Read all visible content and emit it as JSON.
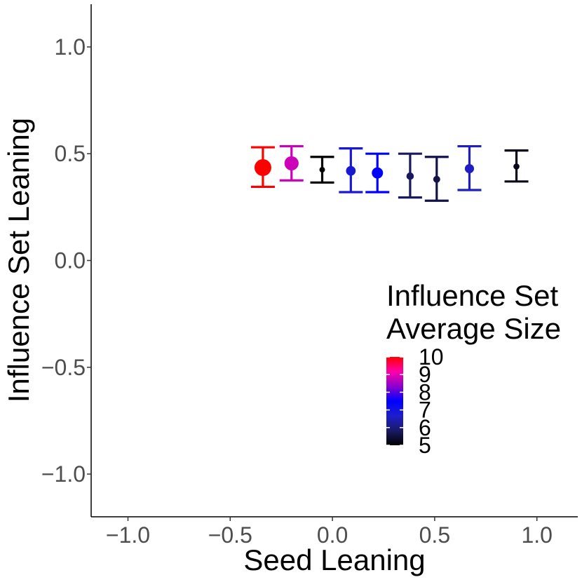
{
  "chart_data": {
    "type": "scatter",
    "title": "",
    "xlabel": "Seed Leaning",
    "ylabel": "Influence Set Leaning",
    "xlim": [
      -1.18,
      1.2
    ],
    "ylim": [
      -1.2,
      1.2
    ],
    "x_ticks": [
      -1.0,
      -0.5,
      0.0,
      0.5,
      1.0
    ],
    "x_tick_labels": [
      "−1.0",
      "−0.5",
      "0.0",
      "0.5",
      "1.0"
    ],
    "y_ticks": [
      -1.0,
      -0.5,
      0.0,
      0.5,
      1.0
    ],
    "y_tick_labels": [
      "−1.0",
      "−0.5",
      "0.0",
      "0.5",
      "1.0"
    ],
    "grid": false,
    "points": [
      {
        "x": -0.34,
        "y": 0.435,
        "ymin": 0.345,
        "ymax": 0.53,
        "size": 10.0
      },
      {
        "x": -0.2,
        "y": 0.455,
        "ymin": 0.375,
        "ymax": 0.535,
        "size": 8.8
      },
      {
        "x": -0.05,
        "y": 0.425,
        "ymin": 0.365,
        "ymax": 0.485,
        "size": 5.0
      },
      {
        "x": 0.09,
        "y": 0.42,
        "ymin": 0.32,
        "ymax": 0.525,
        "size": 6.8
      },
      {
        "x": 0.22,
        "y": 0.41,
        "ymin": 0.32,
        "ymax": 0.5,
        "size": 7.5
      },
      {
        "x": 0.38,
        "y": 0.395,
        "ymin": 0.295,
        "ymax": 0.5,
        "size": 5.8
      },
      {
        "x": 0.51,
        "y": 0.38,
        "ymin": 0.28,
        "ymax": 0.485,
        "size": 5.6
      },
      {
        "x": 0.67,
        "y": 0.43,
        "ymin": 0.33,
        "ymax": 0.535,
        "size": 6.6
      },
      {
        "x": 0.9,
        "y": 0.44,
        "ymin": 0.37,
        "ymax": 0.515,
        "size": 5.2
      }
    ],
    "legend": {
      "title_lines": [
        "Influence Set",
        "Average Size"
      ],
      "placement": "right-center",
      "min": 5,
      "max": 10,
      "labels": [
        "10",
        "9",
        "8",
        "7",
        "6",
        "5"
      ],
      "label_values": [
        10,
        9,
        8,
        7,
        6,
        5
      ],
      "colors": [
        "#000000",
        "#1a1a66",
        "#1e1ecc",
        "#0000ff",
        "#8c00cc",
        "#ff00aa",
        "#ff0000"
      ]
    }
  }
}
